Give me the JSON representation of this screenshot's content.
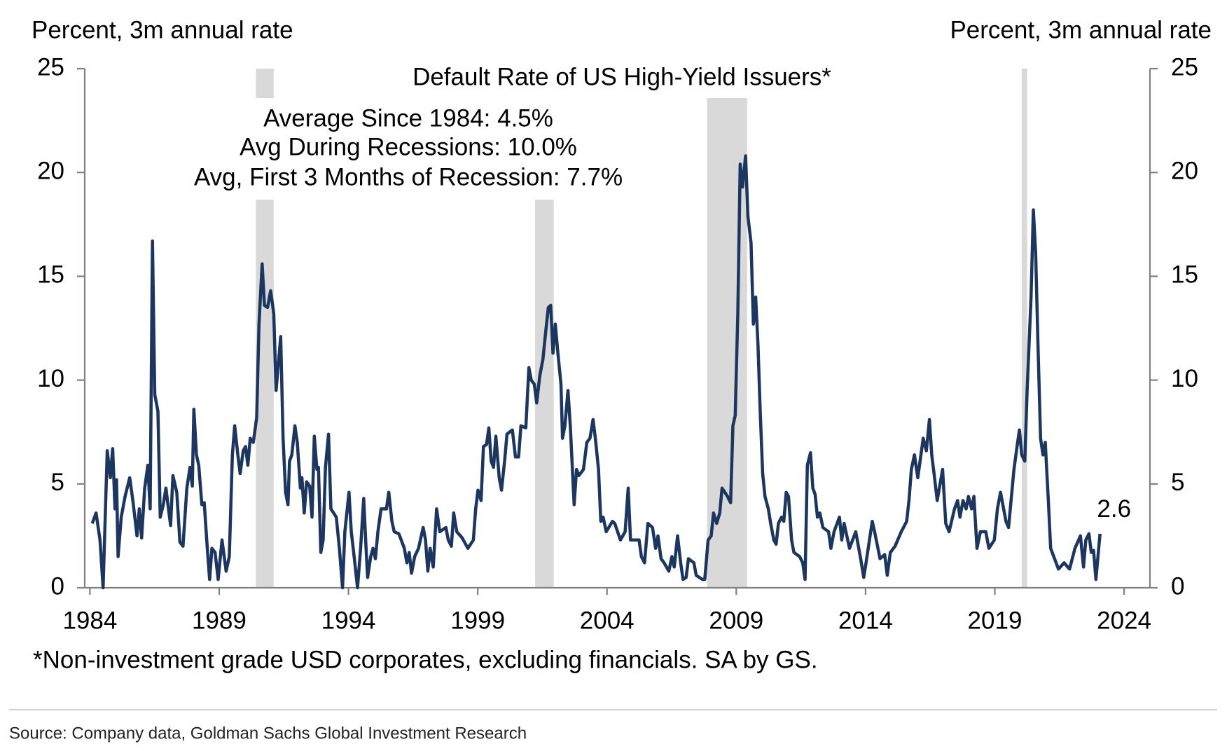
{
  "chart_data": {
    "type": "line",
    "title": "Default Rate of US High-Yield Issuers*",
    "y_label": "Percent, 3m annual rate",
    "y2_label": "Percent, 3m annual rate",
    "annotations": [
      "Average Since 1984: 4.5%",
      "Avg During Recessions: 10.0%",
      "Avg, First 3 Months of Recession: 7.7%"
    ],
    "footnote": "*Non-investment grade USD corporates, excluding financials. SA by GS.",
    "source": "Source: Company data, Goldman Sachs Global Investment Research",
    "color": "#1c365f",
    "recession_color": "#d9d9d9",
    "recessions": [
      [
        1990.42,
        1991.11
      ],
      [
        2001.22,
        2001.94
      ],
      [
        2007.87,
        2009.42
      ],
      [
        2020.04,
        2020.25
      ]
    ],
    "xlim": [
      1983.8,
      2025.0
    ],
    "xticks": [
      1984,
      1989,
      1994,
      1999,
      2004,
      2009,
      2014,
      2019,
      2024
    ],
    "ylim": [
      0,
      25
    ],
    "yticks": [
      0,
      5,
      10,
      15,
      20,
      25
    ],
    "y2lim": [
      0,
      25
    ],
    "y2ticks": [
      0,
      5,
      10,
      15,
      20,
      25
    ],
    "x": [
      1984.09,
      1984.24,
      1984.39,
      1984.51,
      1984.67,
      1984.79,
      1984.88,
      1984.97,
      1985.03,
      1985.09,
      1985.21,
      1985.36,
      1985.54,
      1985.66,
      1985.82,
      1985.91,
      1986.0,
      1986.12,
      1986.24,
      1986.33,
      1986.42,
      1986.51,
      1986.63,
      1986.72,
      1986.84,
      1986.94,
      1987.03,
      1987.12,
      1987.21,
      1987.36,
      1987.48,
      1987.6,
      1987.75,
      1987.87,
      1987.96,
      1988.02,
      1988.12,
      1988.21,
      1988.33,
      1988.42,
      1988.54,
      1988.63,
      1988.72,
      1988.84,
      1988.96,
      1989.11,
      1989.27,
      1989.39,
      1989.51,
      1989.6,
      1989.72,
      1989.81,
      1989.93,
      1990.02,
      1990.11,
      1990.2,
      1990.32,
      1990.45,
      1990.54,
      1990.66,
      1990.75,
      1990.87,
      1990.99,
      1991.11,
      1991.2,
      1991.29,
      1991.38,
      1991.47,
      1991.57,
      1991.66,
      1991.72,
      1991.81,
      1991.93,
      1992.02,
      1992.14,
      1992.2,
      1992.29,
      1992.38,
      1992.5,
      1992.59,
      1992.68,
      1992.78,
      1992.84,
      1992.93,
      1993.02,
      1993.11,
      1993.23,
      1993.32,
      1993.53,
      1993.65,
      1993.77,
      1993.86,
      1994.02,
      1994.11,
      1994.23,
      1994.35,
      1994.47,
      1994.59,
      1994.68,
      1994.74,
      1994.86,
      1994.95,
      1995.04,
      1995.14,
      1995.26,
      1995.47,
      1995.56,
      1995.68,
      1995.77,
      1995.95,
      1996.04,
      1996.16,
      1996.26,
      1996.35,
      1996.44,
      1996.56,
      1996.71,
      1996.89,
      1996.98,
      1997.07,
      1997.16,
      1997.28,
      1997.41,
      1997.53,
      1997.77,
      1997.86,
      1997.98,
      1998.07,
      1998.19,
      1998.4,
      1998.62,
      1998.83,
      1998.92,
      1999.01,
      1999.13,
      1999.22,
      1999.34,
      1999.43,
      1999.52,
      1999.61,
      1999.7,
      1999.83,
      1999.92,
      2000.04,
      2000.13,
      2000.34,
      2000.46,
      2000.58,
      2000.67,
      2000.86,
      2000.98,
      2001.07,
      2001.19,
      2001.28,
      2001.4,
      2001.52,
      2001.61,
      2001.73,
      2001.82,
      2001.91,
      2002.0,
      2002.1,
      2002.22,
      2002.28,
      2002.37,
      2002.49,
      2002.58,
      2002.73,
      2002.82,
      2002.91,
      2003.09,
      2003.22,
      2003.34,
      2003.46,
      2003.55,
      2003.67,
      2003.76,
      2003.85,
      2003.97,
      2004.21,
      2004.3,
      2004.52,
      2004.7,
      2004.82,
      2004.91,
      2005.24,
      2005.33,
      2005.45,
      2005.58,
      2005.76,
      2005.88,
      2005.97,
      2006.09,
      2006.21,
      2006.39,
      2006.51,
      2006.6,
      2006.73,
      2006.85,
      2006.94,
      2007.06,
      2007.15,
      2007.36,
      2007.45,
      2007.69,
      2007.78,
      2007.91,
      2008.03,
      2008.12,
      2008.24,
      2008.36,
      2008.45,
      2008.66,
      2008.78,
      2008.87,
      2008.96,
      2009.06,
      2009.15,
      2009.24,
      2009.36,
      2009.45,
      2009.57,
      2009.66,
      2009.75,
      2009.84,
      2009.93,
      2010.02,
      2010.11,
      2010.24,
      2010.33,
      2010.45,
      2010.54,
      2010.63,
      2010.75,
      2010.84,
      2010.93,
      2011.02,
      2011.14,
      2011.23,
      2011.45,
      2011.57,
      2011.66,
      2011.75,
      2011.87,
      2011.96,
      2012.05,
      2012.14,
      2012.23,
      2012.35,
      2012.57,
      2012.66,
      2012.78,
      2012.99,
      2013.08,
      2013.17,
      2013.38,
      2013.5,
      2013.62,
      2013.81,
      2013.93,
      2014.02,
      2014.26,
      2014.35,
      2014.56,
      2014.74,
      2014.84,
      2014.96,
      2015.14,
      2015.38,
      2015.59,
      2015.68,
      2015.77,
      2015.89,
      2016.02,
      2016.23,
      2016.35,
      2016.47,
      2016.56,
      2016.65,
      2016.77,
      2016.98,
      2017.1,
      2017.23,
      2017.44,
      2017.56,
      2017.65,
      2017.77,
      2017.89,
      2017.98,
      2018.1,
      2018.19,
      2018.31,
      2018.44,
      2018.65,
      2018.77,
      2018.98,
      2019.1,
      2019.22,
      2019.43,
      2019.53,
      2019.74,
      2019.86,
      2019.95,
      2020.04,
      2020.16,
      2020.25,
      2020.4,
      2020.49,
      2020.58,
      2020.67,
      2020.77,
      2020.86,
      2020.95,
      2021.07,
      2021.16,
      2021.37,
      2021.46,
      2021.68,
      2021.89,
      2022.1,
      2022.31,
      2022.43,
      2022.52,
      2022.64,
      2022.73,
      2022.82,
      2022.91,
      2023.07
    ],
    "values": [
      3.1,
      3.6,
      2.3,
      0,
      6.6,
      5.3,
      6.7,
      3.8,
      5.2,
      1.5,
      3.4,
      4.4,
      5.3,
      4.2,
      2.5,
      3.8,
      2.4,
      4.8,
      5.9,
      3.8,
      16.7,
      9.3,
      8.5,
      3.4,
      4.0,
      4.8,
      3.9,
      3.0,
      5.4,
      4.6,
      2.2,
      2.0,
      4.8,
      5.8,
      4.9,
      8.6,
      6.4,
      5.9,
      4.0,
      4.1,
      1.9,
      0.4,
      1.9,
      1.7,
      0.4,
      2.3,
      0.8,
      1.5,
      6.4,
      7.8,
      6.4,
      5.5,
      6.6,
      6.8,
      5.9,
      7.2,
      7.0,
      8.2,
      12.7,
      15.6,
      13.6,
      13.5,
      14.3,
      13.2,
      9.5,
      10.8,
      12.1,
      7.2,
      4.6,
      4.0,
      6.1,
      6.4,
      7.8,
      7.0,
      4.8,
      5.3,
      3.6,
      5.1,
      4.9,
      3.4,
      7.3,
      5.7,
      5.8,
      1.7,
      2.3,
      5.8,
      7.4,
      3.8,
      3.4,
      1.9,
      0,
      2.7,
      4.6,
      2.7,
      1.4,
      0,
      1.9,
      4.3,
      1.9,
      0.5,
      1.5,
      1.9,
      1.4,
      2.7,
      3.8,
      3.8,
      4.6,
      3.2,
      2.7,
      2.6,
      2.3,
      1.9,
      1.2,
      1.7,
      0.7,
      1.5,
      1.9,
      2.9,
      2.3,
      0.8,
      1.9,
      1.0,
      3.8,
      2.7,
      2.9,
      2.3,
      2.0,
      3.6,
      2.7,
      2.4,
      1.9,
      2.3,
      3.8,
      4.7,
      4.2,
      6.8,
      6.9,
      7.7,
      6.1,
      5.8,
      7.3,
      5.3,
      4.7,
      6.1,
      7.4,
      7.6,
      6.3,
      6.3,
      7.8,
      7.7,
      10.6,
      10.0,
      9.8,
      8.9,
      10.2,
      11.0,
      12.1,
      13.5,
      13.6,
      11.3,
      12.7,
      11.3,
      9.8,
      7.2,
      7.8,
      9.5,
      7.8,
      4.0,
      5.7,
      5.4,
      5.7,
      7.0,
      7.2,
      8.1,
      7.2,
      5.7,
      3.2,
      3.4,
      2.7,
      3.2,
      3.1,
      2.3,
      2.7,
      4.8,
      2.3,
      2.3,
      1.5,
      1.2,
      3.1,
      2.9,
      1.9,
      2.5,
      1.4,
      1.2,
      0.8,
      1.5,
      1.0,
      2.5,
      1.2,
      0.4,
      0.5,
      1.4,
      1.2,
      0.6,
      0.4,
      0.4,
      2.3,
      2.5,
      3.6,
      3.1,
      3.6,
      4.8,
      4.4,
      4.1,
      7.8,
      8.3,
      13.2,
      20.4,
      19.3,
      20.8,
      17.9,
      16.6,
      12.7,
      14.0,
      11.7,
      8.3,
      5.5,
      4.4,
      3.8,
      3.1,
      2.3,
      2.1,
      3.1,
      3.4,
      3.2,
      4.6,
      4.4,
      2.3,
      1.7,
      1.5,
      1.2,
      0.4,
      5.9,
      6.5,
      4.8,
      4.5,
      3.4,
      3.6,
      2.9,
      2.7,
      1.9,
      2.7,
      3.4,
      2.3,
      3.1,
      1.9,
      2.3,
      2.7,
      1.4,
      0.5,
      1.2,
      3.2,
      2.7,
      1.4,
      1.6,
      0.6,
      1.7,
      2.0,
      2.7,
      3.2,
      4.2,
      5.7,
      6.4,
      5.3,
      7.2,
      6.6,
      8.1,
      6.4,
      5.5,
      4.2,
      5.7,
      3.1,
      2.7,
      3.8,
      4.2,
      3.4,
      4.2,
      3.8,
      4.4,
      3.8,
      4.4,
      1.9,
      2.7,
      2.7,
      1.9,
      2.3,
      3.8,
      4.6,
      3.2,
      2.9,
      5.7,
      6.8,
      7.6,
      6.4,
      6.1,
      9.5,
      14.0,
      18.2,
      16.1,
      11.7,
      7.2,
      6.4,
      7.0,
      4.2,
      1.9,
      1.2,
      0.9,
      1.2,
      0.9,
      1.9,
      2.5,
      1.0,
      2.3,
      2.6,
      1.7,
      1.8,
      0.4,
      2.6
    ]
  }
}
